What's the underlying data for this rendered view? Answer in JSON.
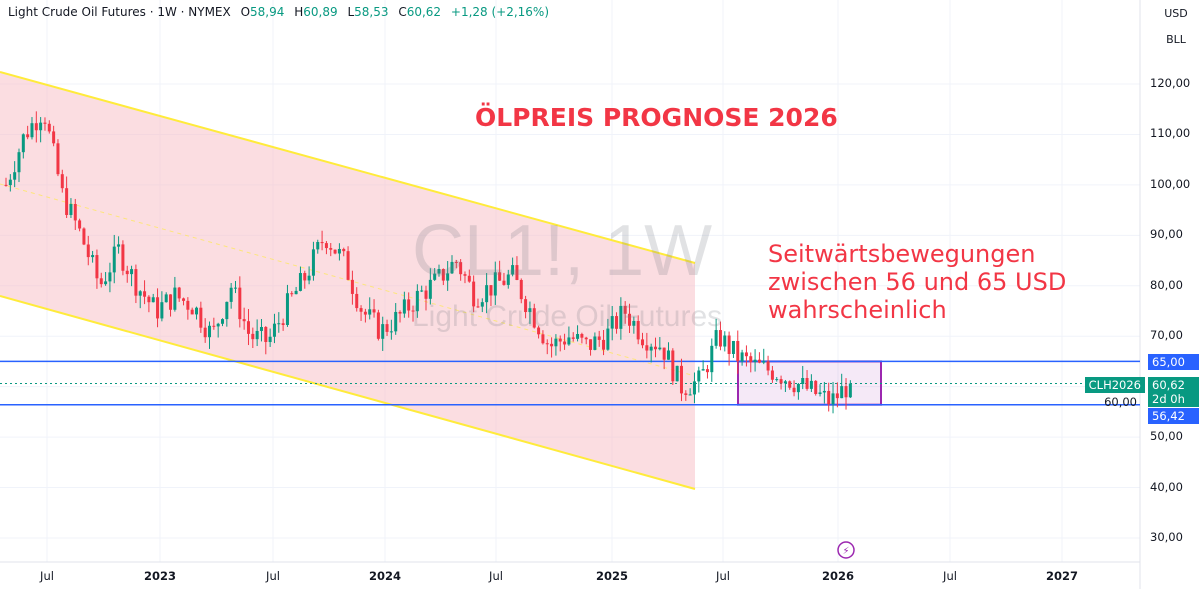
{
  "header": {
    "symbol": "Light Crude Oil Futures · 1W · NYMEX",
    "open_label": "O",
    "open": "58,94",
    "high_label": "H",
    "high": "60,89",
    "low_label": "L",
    "low": "58,53",
    "close_label": "C",
    "close": "60,62",
    "change": "+1,28 (+2,16%)"
  },
  "scale_buttons": {
    "currency": "USD",
    "unit": "BLL"
  },
  "watermark": {
    "ticker": "CL1!, 1W",
    "name": "Light Crude Oil Futures"
  },
  "annotations": {
    "title": "ÖLPREIS PROGNOSE 2026",
    "note": [
      "Seitwärtsbewegungen",
      "zwischen 56 und 65 USD",
      "wahrscheinlich"
    ]
  },
  "price_tags": {
    "upper": "65,00",
    "lower": "56,42",
    "last": "60,62",
    "countdown": "2d 0h",
    "contract": "CLH2026"
  },
  "colors": {
    "up": "#089981",
    "down": "#f23645",
    "channel": "#ffeb3b",
    "channel_fill": "#f8bbc4",
    "levels": "#2962ff",
    "box": "#9c27b0",
    "accent": "#f23645"
  },
  "chart_data": {
    "type": "candlestick",
    "y_ticks": [
      "120,00",
      "110,00",
      "100,00",
      "90,00",
      "80,00",
      "70,00",
      "60,00",
      "50,00",
      "40,00",
      "30,00"
    ],
    "x_ticks": [
      {
        "label": "Jul",
        "bold": false
      },
      {
        "label": "2023",
        "bold": true
      },
      {
        "label": "Jul",
        "bold": false
      },
      {
        "label": "2024",
        "bold": true
      },
      {
        "label": "Jul",
        "bold": false
      },
      {
        "label": "2025",
        "bold": true
      },
      {
        "label": "Jul",
        "bold": false
      },
      {
        "label": "2026",
        "bold": true
      },
      {
        "label": "Jul",
        "bold": false
      },
      {
        "label": "2027",
        "bold": true
      }
    ],
    "ylim": [
      25,
      128
    ],
    "monthly_closes_from_2022_04": [
      100,
      110,
      115,
      98,
      90,
      80,
      87,
      80,
      75,
      78,
      76,
      70,
      80,
      70,
      69,
      76,
      82,
      90,
      85,
      75,
      71,
      74,
      78,
      81,
      85,
      78,
      80,
      82,
      75,
      68,
      70,
      68,
      70,
      75,
      70,
      68,
      60,
      61,
      70,
      66,
      64,
      63,
      61,
      59,
      57,
      60.62
    ],
    "horizontal_levels": [
      65.0,
      56.42
    ],
    "last_price": 60.62,
    "range_box": {
      "from": "2025-07",
      "to": "2026-03",
      "low": 56.42,
      "high": 65.0
    }
  }
}
